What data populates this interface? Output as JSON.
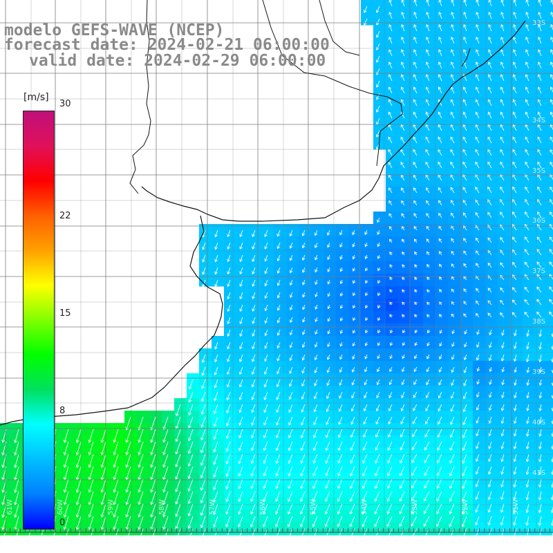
{
  "title": {
    "line1": "modelo GEFS-WAVE (NCEP)",
    "line2": "forecast date: 2024-02-21 06:00:00",
    "line3": "valid date: 2024-02-29 06:00:00"
  },
  "colorbar": {
    "units": "[m/s]",
    "ticks": [
      {
        "value": 30,
        "label": "30"
      },
      {
        "value": 22,
        "label": "22"
      },
      {
        "value": 15,
        "label": "15"
      },
      {
        "value": 8,
        "label": "8"
      },
      {
        "value": 0,
        "label": "0"
      }
    ],
    "range": [
      0,
      30
    ],
    "colors": [
      "#0000ff",
      "#0080ff",
      "#00c0ff",
      "#00ffff",
      "#00e060",
      "#00ff00",
      "#80ff00",
      "#ffff00",
      "#ffa000",
      "#ff6000",
      "#ff0000",
      "#e0105a",
      "#c0107a"
    ]
  },
  "map": {
    "latitude_labels": [
      "33S",
      "34S",
      "35S",
      "36S",
      "37S",
      "38S",
      "39S",
      "40S",
      "41S"
    ],
    "longitude_labels": [
      "61W",
      "60W",
      "59W",
      "58W",
      "57W",
      "56W",
      "55W",
      "54W",
      "53W",
      "52W",
      "51W"
    ],
    "land_color": "#ffffff",
    "grid_color": "#7a7a7a",
    "arrow_color": "#ffffff"
  }
}
